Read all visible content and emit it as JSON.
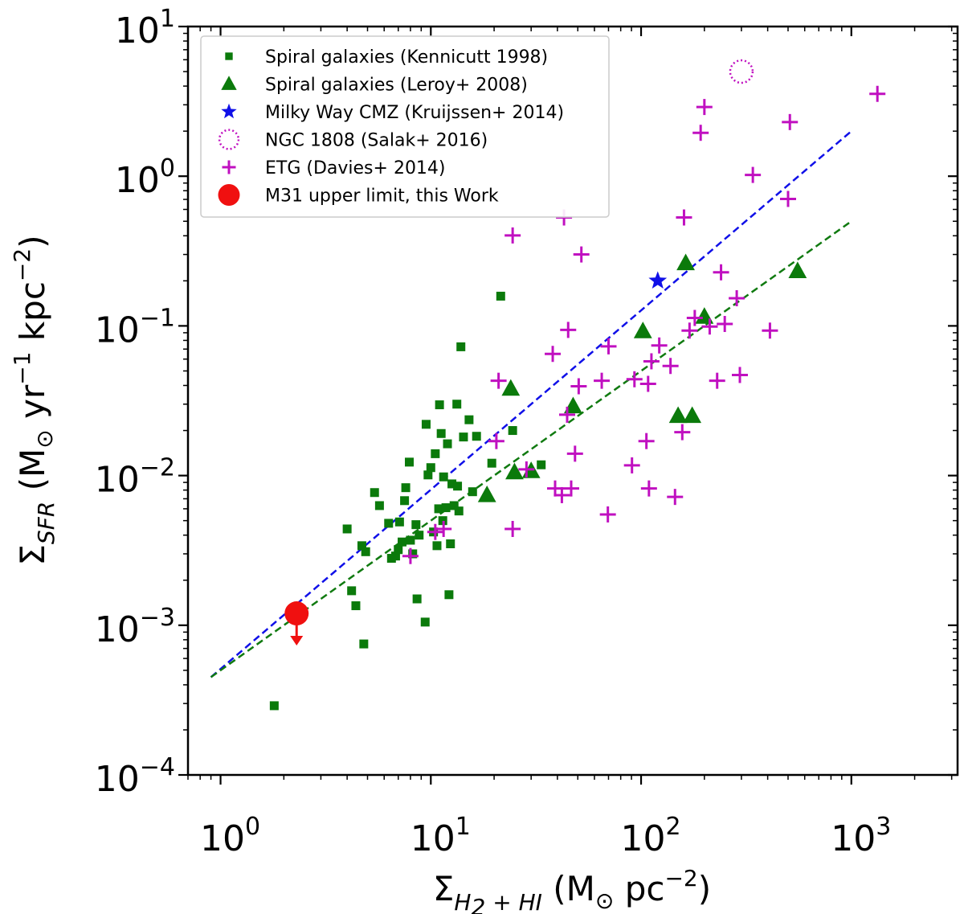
{
  "colors": {
    "spiral_kennicutt": "#0b7a0b",
    "spiral_leroy": "#0b7a0b",
    "milky_way": "#1010e8",
    "ngc1808": "#c010c0",
    "etg": "#c010c0",
    "m31": "#f01010",
    "fit_blue": "#1010e8",
    "fit_green": "#107a10"
  },
  "chart_data": {
    "type": "scatter",
    "xscale": "log",
    "yscale": "log",
    "xlim": [
      0.7,
      3200
    ],
    "ylim": [
      0.0001,
      10
    ],
    "x_ticks": [
      {
        "value": 1,
        "base": "10",
        "exp": "0"
      },
      {
        "value": 10,
        "base": "10",
        "exp": "1"
      },
      {
        "value": 100,
        "base": "10",
        "exp": "2"
      },
      {
        "value": 1000,
        "base": "10",
        "exp": "3"
      }
    ],
    "y_ticks": [
      {
        "value": 0.0001,
        "base": "10",
        "exp": "−4"
      },
      {
        "value": 0.001,
        "base": "10",
        "exp": "−3"
      },
      {
        "value": 0.01,
        "base": "10",
        "exp": "−2"
      },
      {
        "value": 0.1,
        "base": "10",
        "exp": "−1"
      },
      {
        "value": 1,
        "base": "10",
        "exp": "0"
      },
      {
        "value": 10,
        "base": "10",
        "exp": "1"
      }
    ],
    "xlabel": {
      "main": "Σ",
      "sub": "H",
      "sub2": "2",
      "sub3": " + HI",
      "rest": " (M",
      "sun": "⊙",
      "unit": " pc",
      "exp": "−2",
      "close": ")"
    },
    "ylabel": {
      "main": "Σ",
      "sub": "SFR",
      "rest": " (M",
      "sun": "⊙",
      "unit1": " yr",
      "exp1": "−1",
      "unit2": " kpc",
      "exp2": "−2",
      "close": ")"
    },
    "legend": [
      {
        "key": "spiral_kennicutt",
        "marker": "square",
        "label": "Spiral galaxies (Kennicutt 1998)"
      },
      {
        "key": "spiral_leroy",
        "marker": "triangle",
        "label": "Spiral galaxies (Leroy+ 2008)"
      },
      {
        "key": "milky_way",
        "marker": "star",
        "label": "Milky Way CMZ (Kruijssen+ 2014)"
      },
      {
        "key": "ngc1808",
        "marker": "dotted-circle",
        "label": "NGC 1808 (Salak+ 2016)"
      },
      {
        "key": "etg",
        "marker": "plus",
        "label": "ETG (Davies+ 2014)"
      },
      {
        "key": "m31",
        "marker": "circle",
        "label": "M31 upper limit, this Work"
      }
    ],
    "fit_lines": [
      {
        "name": "blue-fit",
        "color_key": "fit_blue",
        "x": [
          0.9,
          1000
        ],
        "y": [
          0.00045,
          2.0
        ]
      },
      {
        "name": "green-fit",
        "color_key": "fit_green",
        "x": [
          0.9,
          1000
        ],
        "y": [
          0.00045,
          0.5
        ]
      }
    ],
    "series": [
      {
        "name": "Spiral galaxies (Kennicutt 1998)",
        "key": "spiral_kennicutt",
        "marker": "square",
        "points": [
          [
            1.8,
            0.00029
          ],
          [
            4.0,
            0.0044
          ],
          [
            4.2,
            0.0017
          ],
          [
            4.4,
            0.00135
          ],
          [
            4.7,
            0.0034
          ],
          [
            4.8,
            0.00075
          ],
          [
            4.9,
            0.0031
          ],
          [
            5.4,
            0.0077
          ],
          [
            5.7,
            0.0063
          ],
          [
            6.3,
            0.0048
          ],
          [
            6.5,
            0.0028
          ],
          [
            6.8,
            0.0029
          ],
          [
            7.0,
            0.0032
          ],
          [
            7.1,
            0.0049
          ],
          [
            7.3,
            0.0036
          ],
          [
            7.5,
            0.0068
          ],
          [
            7.6,
            0.0083
          ],
          [
            7.9,
            0.0123
          ],
          [
            8.0,
            0.0037
          ],
          [
            8.2,
            0.003
          ],
          [
            8.5,
            0.0047
          ],
          [
            8.6,
            0.0015
          ],
          [
            8.8,
            0.004
          ],
          [
            9.4,
            0.00105
          ],
          [
            9.5,
            0.022
          ],
          [
            9.7,
            0.0101
          ],
          [
            10.0,
            0.0113
          ],
          [
            10.3,
            0.0042
          ],
          [
            10.5,
            0.014
          ],
          [
            10.7,
            0.0034
          ],
          [
            10.9,
            0.006
          ],
          [
            11.0,
            0.0297
          ],
          [
            11.2,
            0.0191
          ],
          [
            11.4,
            0.005
          ],
          [
            11.5,
            0.0098
          ],
          [
            11.8,
            0.0061
          ],
          [
            12.0,
            0.0163
          ],
          [
            12.2,
            0.0016
          ],
          [
            12.4,
            0.0035
          ],
          [
            12.6,
            0.0088
          ],
          [
            12.9,
            0.0063
          ],
          [
            13.3,
            0.03
          ],
          [
            13.4,
            0.0085
          ],
          [
            13.6,
            0.0058
          ],
          [
            13.9,
            0.0725
          ],
          [
            14.3,
            0.0181
          ],
          [
            15.2,
            0.0236
          ],
          [
            15.8,
            0.0078
          ],
          [
            16.5,
            0.0183
          ],
          [
            19.5,
            0.0121
          ],
          [
            21.5,
            0.158
          ],
          [
            24.5,
            0.02
          ],
          [
            33.5,
            0.0118
          ]
        ]
      },
      {
        "name": "Spiral galaxies (Leroy+ 2008)",
        "key": "spiral_leroy",
        "marker": "triangle",
        "points": [
          [
            18.5,
            0.0074
          ],
          [
            24.0,
            0.038
          ],
          [
            25.0,
            0.0105
          ],
          [
            30.0,
            0.0107
          ],
          [
            47.5,
            0.029
          ],
          [
            102.0,
            0.092
          ],
          [
            150.0,
            0.025
          ],
          [
            163.0,
            0.262
          ],
          [
            175.0,
            0.025
          ],
          [
            200.0,
            0.115
          ],
          [
            555.0,
            0.232
          ]
        ]
      },
      {
        "name": "Milky Way CMZ (Kruijssen+ 2014)",
        "key": "milky_way",
        "marker": "star",
        "points": [
          [
            120.0,
            0.2
          ]
        ]
      },
      {
        "name": "NGC 1808 (Salak+ 2016)",
        "key": "ngc1808",
        "marker": "dotted-circle",
        "points": [
          [
            300.0,
            5.0
          ]
        ]
      },
      {
        "name": "ETG (Davies+ 2014)",
        "key": "etg",
        "marker": "plus",
        "points": [
          [
            8.0,
            0.0029
          ],
          [
            10.5,
            0.0042
          ],
          [
            11.5,
            0.0044
          ],
          [
            20.5,
            0.017
          ],
          [
            21.0,
            0.043
          ],
          [
            24.5,
            0.402
          ],
          [
            24.5,
            0.0044
          ],
          [
            28.5,
            0.011
          ],
          [
            38.0,
            0.065
          ],
          [
            39.0,
            0.0082
          ],
          [
            42.0,
            0.0074
          ],
          [
            43.0,
            0.53
          ],
          [
            44.5,
            0.0255
          ],
          [
            45.0,
            0.094
          ],
          [
            46.5,
            0.0082
          ],
          [
            48.5,
            0.014
          ],
          [
            50.5,
            0.0395
          ],
          [
            52.0,
            0.3
          ],
          [
            65.0,
            0.043
          ],
          [
            69.5,
            0.0055
          ],
          [
            70.0,
            0.073
          ],
          [
            90.5,
            0.0117
          ],
          [
            93.0,
            0.044
          ],
          [
            106.0,
            0.017
          ],
          [
            108.0,
            0.041
          ],
          [
            109.0,
            0.0082
          ],
          [
            112.0,
            0.058
          ],
          [
            122.0,
            0.074
          ],
          [
            138.0,
            0.054
          ],
          [
            145.0,
            0.0072
          ],
          [
            157.0,
            0.0195
          ],
          [
            160.0,
            0.53
          ],
          [
            170.0,
            0.093
          ],
          [
            180.0,
            0.113
          ],
          [
            192.0,
            1.95
          ],
          [
            200.0,
            2.9
          ],
          [
            212.0,
            0.099
          ],
          [
            230.0,
            0.043
          ],
          [
            240.0,
            0.228
          ],
          [
            250.0,
            0.103
          ],
          [
            285.0,
            0.153
          ],
          [
            295.0,
            0.047
          ],
          [
            340.0,
            1.02
          ],
          [
            410.0,
            0.093
          ],
          [
            500.0,
            0.705
          ],
          [
            510.0,
            2.3
          ],
          [
            1330.0,
            3.55
          ]
        ]
      },
      {
        "name": "M31 upper limit, this Work",
        "key": "m31",
        "marker": "circle",
        "points": [
          [
            2.3,
            0.0012
          ]
        ],
        "upper_limit": true
      }
    ]
  }
}
